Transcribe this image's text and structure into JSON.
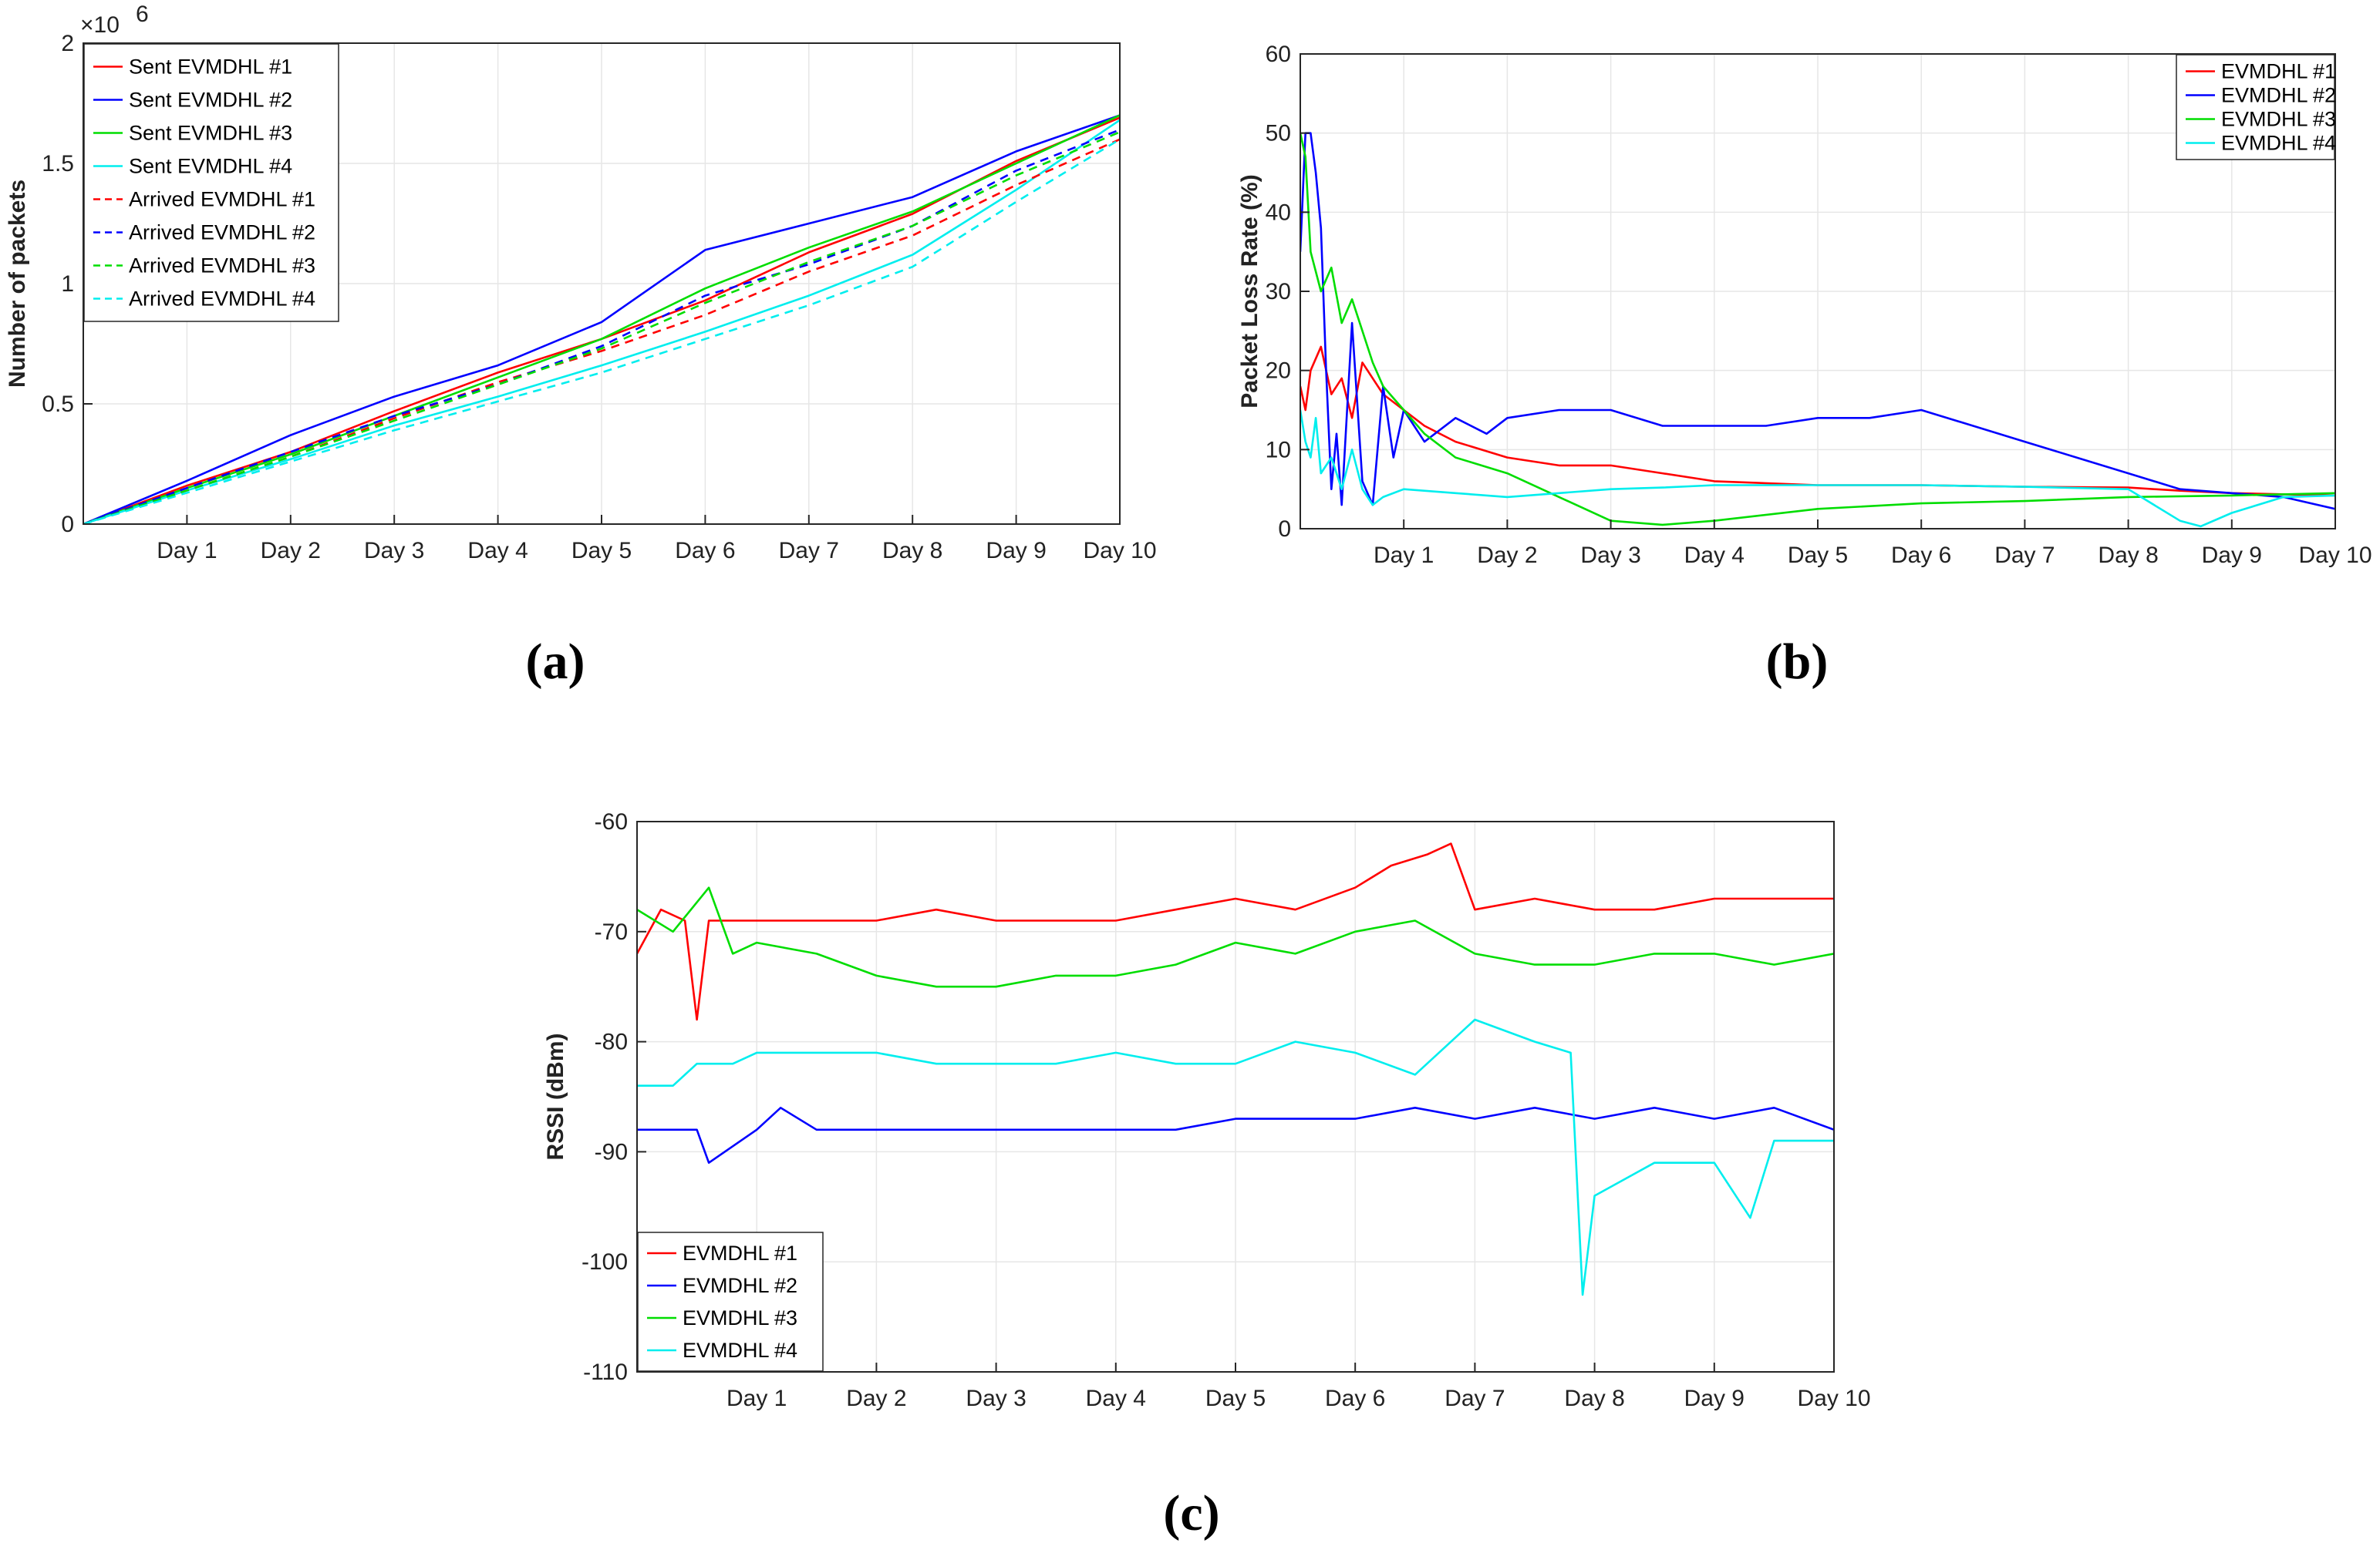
{
  "chart_data": [
    {
      "id": "a",
      "type": "line",
      "panel_label": "(a)",
      "title": "",
      "xlabel": "",
      "ylabel": "Number of packets",
      "y_exponent_label": "×10",
      "y_exponent": "6",
      "xlim": [
        0,
        10
      ],
      "ylim": [
        0,
        2
      ],
      "xticks": [
        1,
        2,
        3,
        4,
        5,
        6,
        7,
        8,
        9,
        10
      ],
      "xtick_labels": [
        "Day 1",
        "Day 2",
        "Day 3",
        "Day 4",
        "Day 5",
        "Day 6",
        "Day 7",
        "Day 8",
        "Day 9",
        "Day 10"
      ],
      "yticks": [
        0,
        0.5,
        1,
        1.5,
        2
      ],
      "ytick_labels": [
        "0",
        "0.5",
        "1",
        "1.5",
        "2"
      ],
      "legend_position": "top-left",
      "grid": true,
      "series": [
        {
          "name": "Sent EVMDHL #1",
          "color": "#ff0000",
          "dash": false,
          "x": [
            0,
            1,
            2,
            3,
            4,
            5,
            6,
            7,
            8,
            9,
            10
          ],
          "values": [
            0,
            0.16,
            0.3,
            0.47,
            0.63,
            0.77,
            0.93,
            1.13,
            1.29,
            1.51,
            1.69
          ]
        },
        {
          "name": "Sent EVMDHL #2",
          "color": "#0000ff",
          "dash": false,
          "x": [
            0,
            1,
            2,
            3,
            4,
            5,
            6,
            7,
            8,
            9,
            10
          ],
          "values": [
            0,
            0.18,
            0.37,
            0.53,
            0.66,
            0.84,
            1.14,
            1.25,
            1.36,
            1.55,
            1.7
          ]
        },
        {
          "name": "Sent EVMDHL #3",
          "color": "#00dd00",
          "dash": false,
          "x": [
            0,
            1,
            2,
            3,
            4,
            5,
            6,
            7,
            8,
            9,
            10
          ],
          "values": [
            0,
            0.15,
            0.29,
            0.45,
            0.61,
            0.77,
            0.98,
            1.15,
            1.3,
            1.5,
            1.7
          ]
        },
        {
          "name": "Sent EVMDHL #4",
          "color": "#00eeee",
          "dash": false,
          "x": [
            0,
            1,
            2,
            3,
            4,
            5,
            6,
            7,
            8,
            9,
            10
          ],
          "values": [
            0,
            0.14,
            0.27,
            0.41,
            0.53,
            0.66,
            0.8,
            0.95,
            1.12,
            1.39,
            1.68
          ]
        },
        {
          "name": "Arrived EVMDHL #1",
          "color": "#ff0000",
          "dash": true,
          "x": [
            0,
            1,
            2,
            3,
            4,
            5,
            6,
            7,
            8,
            9,
            10
          ],
          "values": [
            0,
            0.14,
            0.28,
            0.44,
            0.59,
            0.72,
            0.87,
            1.05,
            1.2,
            1.41,
            1.6
          ]
        },
        {
          "name": "Arrived EVMDHL #2",
          "color": "#0000ff",
          "dash": true,
          "x": [
            0,
            1,
            2,
            3,
            4,
            5,
            6,
            7,
            8,
            9,
            10
          ],
          "values": [
            0,
            0.15,
            0.3,
            0.45,
            0.58,
            0.74,
            0.95,
            1.08,
            1.24,
            1.47,
            1.64
          ]
        },
        {
          "name": "Arrived EVMDHL #3",
          "color": "#00dd00",
          "dash": true,
          "x": [
            0,
            1,
            2,
            3,
            4,
            5,
            6,
            7,
            8,
            9,
            10
          ],
          "values": [
            0,
            0.14,
            0.28,
            0.43,
            0.58,
            0.73,
            0.92,
            1.09,
            1.24,
            1.45,
            1.63
          ]
        },
        {
          "name": "Arrived EVMDHL #4",
          "color": "#00eeee",
          "dash": true,
          "x": [
            0,
            1,
            2,
            3,
            4,
            5,
            6,
            7,
            8,
            9,
            10
          ],
          "values": [
            0,
            0.13,
            0.26,
            0.39,
            0.51,
            0.63,
            0.77,
            0.91,
            1.07,
            1.34,
            1.6
          ]
        }
      ]
    },
    {
      "id": "b",
      "type": "line",
      "panel_label": "(b)",
      "title": "",
      "xlabel": "",
      "ylabel": "Packet Loss Rate (%)",
      "xlim": [
        0,
        10
      ],
      "ylim": [
        0,
        60
      ],
      "xticks": [
        1,
        2,
        3,
        4,
        5,
        6,
        7,
        8,
        9,
        10
      ],
      "xtick_labels": [
        "Day 1",
        "Day 2",
        "Day 3",
        "Day 4",
        "Day 5",
        "Day 6",
        "Day 7",
        "Day 8",
        "Day 9",
        "Day 10"
      ],
      "yticks": [
        0,
        10,
        20,
        30,
        40,
        50,
        60
      ],
      "ytick_labels": [
        "0",
        "10",
        "20",
        "30",
        "40",
        "50",
        "60"
      ],
      "legend_position": "top-right",
      "grid": true,
      "series": [
        {
          "name": "EVMDHL #1",
          "color": "#ff0000",
          "x": [
            0,
            0.05,
            0.1,
            0.2,
            0.3,
            0.4,
            0.5,
            0.6,
            0.8,
            1.0,
            1.2,
            1.5,
            2.0,
            2.5,
            3.0,
            3.5,
            4.0,
            5.0,
            6.0,
            7.0,
            8.0,
            8.5,
            9.0,
            10.0
          ],
          "values": [
            18,
            15,
            20,
            23,
            17,
            19,
            14,
            21,
            17,
            15,
            13,
            11,
            9,
            8,
            8,
            7,
            6,
            5.5,
            5.5,
            5.3,
            5.2,
            4.8,
            4.5,
            4.2
          ]
        },
        {
          "name": "EVMDHL #2",
          "color": "#0000ff",
          "x": [
            0,
            0.05,
            0.1,
            0.15,
            0.2,
            0.25,
            0.3,
            0.35,
            0.4,
            0.5,
            0.6,
            0.7,
            0.8,
            0.9,
            1.0,
            1.2,
            1.5,
            1.8,
            2.0,
            2.5,
            3.0,
            3.5,
            4.0,
            4.5,
            5.0,
            5.5,
            6.0,
            6.5,
            7.0,
            7.5,
            8.0,
            8.5,
            9.0,
            9.5,
            10.0
          ],
          "values": [
            35,
            50,
            50,
            45,
            38,
            20,
            5,
            12,
            3,
            26,
            6,
            3,
            18,
            9,
            15,
            11,
            14,
            12,
            14,
            15,
            15,
            13,
            13,
            13,
            14,
            14,
            15,
            13,
            11,
            9,
            7,
            5,
            4.5,
            4,
            2.5
          ]
        },
        {
          "name": "EVMDHL #3",
          "color": "#00dd00",
          "x": [
            0,
            0.05,
            0.1,
            0.2,
            0.3,
            0.4,
            0.5,
            0.6,
            0.7,
            0.8,
            1.0,
            1.2,
            1.5,
            2.0,
            2.5,
            3.0,
            3.5,
            4.0,
            5.0,
            6.0,
            7.0,
            8.0,
            9.0,
            10.0
          ],
          "values": [
            50,
            47,
            35,
            30,
            33,
            26,
            29,
            25,
            21,
            18,
            15,
            12,
            9,
            7,
            4,
            1,
            0.5,
            1,
            2.5,
            3.2,
            3.5,
            4,
            4.2,
            4.5
          ]
        },
        {
          "name": "EVMDHL #4",
          "color": "#00eeee",
          "x": [
            0,
            0.05,
            0.1,
            0.15,
            0.2,
            0.3,
            0.4,
            0.5,
            0.6,
            0.7,
            0.8,
            1.0,
            1.5,
            2.0,
            2.5,
            3.0,
            3.5,
            4.0,
            5.0,
            6.0,
            7.0,
            8.0,
            8.5,
            8.7,
            9.0,
            9.5,
            10.0
          ],
          "values": [
            15,
            11,
            9,
            14,
            7,
            9,
            5,
            10,
            5,
            3,
            4,
            5,
            4.5,
            4,
            4.5,
            5,
            5.2,
            5.5,
            5.5,
            5.5,
            5.3,
            5,
            1,
            0.3,
            2,
            4,
            4.2
          ]
        }
      ]
    },
    {
      "id": "c",
      "type": "line",
      "panel_label": "(c)",
      "title": "",
      "xlabel": "",
      "ylabel": "RSSI (dBm)",
      "xlim": [
        0,
        10
      ],
      "ylim": [
        -110,
        -60
      ],
      "xticks": [
        1,
        2,
        3,
        4,
        5,
        6,
        7,
        8,
        9,
        10
      ],
      "xtick_labels": [
        "Day 1",
        "Day 2",
        "Day 3",
        "Day 4",
        "Day 5",
        "Day 6",
        "Day 7",
        "Day 8",
        "Day 9",
        "Day 10"
      ],
      "yticks": [
        -110,
        -100,
        -90,
        -80,
        -70,
        -60
      ],
      "ytick_labels": [
        "-110",
        "-100",
        "-90",
        "-80",
        "-70",
        "-60"
      ],
      "legend_position": "bottom-left",
      "grid": true,
      "series": [
        {
          "name": "EVMDHL #1",
          "color": "#ff0000",
          "x": [
            0,
            0.2,
            0.4,
            0.5,
            0.6,
            1.0,
            1.5,
            2.0,
            2.5,
            3.0,
            3.5,
            4.0,
            4.5,
            5.0,
            5.5,
            6.0,
            6.3,
            6.6,
            6.8,
            7.0,
            7.5,
            8.0,
            8.5,
            9.0,
            9.5,
            10.0
          ],
          "values": [
            -72,
            -68,
            -69,
            -78,
            -69,
            -69,
            -69,
            -69,
            -68,
            -69,
            -69,
            -69,
            -68,
            -67,
            -68,
            -66,
            -64,
            -63,
            -62,
            -68,
            -67,
            -68,
            -68,
            -67,
            -67,
            -67
          ]
        },
        {
          "name": "EVMDHL #2",
          "color": "#0000ff",
          "x": [
            0,
            0.5,
            0.6,
            1.0,
            1.2,
            1.5,
            2.0,
            2.5,
            3.0,
            3.5,
            4.0,
            4.5,
            5.0,
            5.5,
            6.0,
            6.5,
            7.0,
            7.5,
            8.0,
            8.5,
            9.0,
            9.5,
            10.0
          ],
          "values": [
            -88,
            -88,
            -91,
            -88,
            -86,
            -88,
            -88,
            -88,
            -88,
            -88,
            -88,
            -88,
            -87,
            -87,
            -87,
            -86,
            -87,
            -86,
            -87,
            -86,
            -87,
            -86,
            -88
          ]
        },
        {
          "name": "EVMDHL #3",
          "color": "#00dd00",
          "x": [
            0,
            0.3,
            0.6,
            0.8,
            1.0,
            1.5,
            2.0,
            2.5,
            3.0,
            3.5,
            4.0,
            4.5,
            5.0,
            5.5,
            6.0,
            6.5,
            7.0,
            7.5,
            8.0,
            8.5,
            9.0,
            9.5,
            10.0
          ],
          "values": [
            -68,
            -70,
            -66,
            -72,
            -71,
            -72,
            -74,
            -75,
            -75,
            -74,
            -74,
            -73,
            -71,
            -72,
            -70,
            -69,
            -72,
            -73,
            -73,
            -72,
            -72,
            -73,
            -72
          ]
        },
        {
          "name": "EVMDHL #4",
          "color": "#00eeee",
          "x": [
            0,
            0.3,
            0.5,
            0.8,
            1.0,
            1.5,
            2.0,
            2.5,
            3.0,
            3.5,
            4.0,
            4.5,
            5.0,
            5.5,
            6.0,
            6.5,
            7.0,
            7.5,
            7.8,
            7.9,
            8.0,
            8.5,
            9.0,
            9.3,
            9.5,
            10.0
          ],
          "values": [
            -84,
            -84,
            -82,
            -82,
            -81,
            -81,
            -81,
            -82,
            -82,
            -82,
            -81,
            -82,
            -82,
            -80,
            -81,
            -83,
            -78,
            -80,
            -81,
            -103,
            -94,
            -91,
            -91,
            -96,
            -89,
            -89
          ]
        }
      ]
    }
  ]
}
